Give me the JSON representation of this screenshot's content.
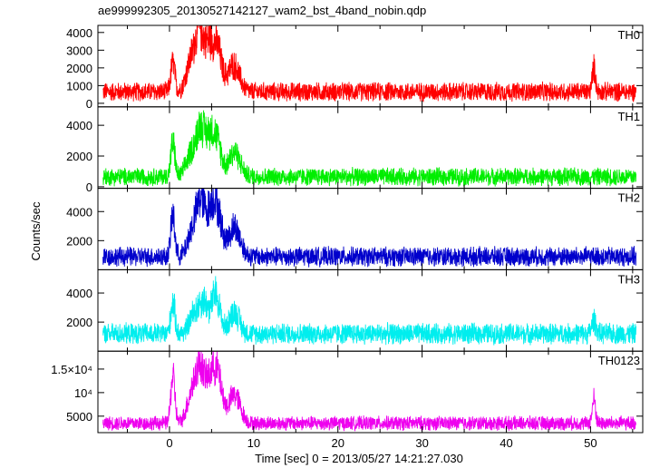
{
  "chart_data": {
    "type": "line",
    "title": "ae999992305_20130527142127_wam2_bst_4band_nobin.qdp",
    "xlabel": "Time [sec] 0 = 2013/05/27 14:21:27.030",
    "ylabel": "Counts/sec",
    "xlim": [
      -8.5,
      56.2
    ],
    "x_ticks": [
      0,
      10,
      20,
      30,
      40,
      50
    ],
    "x_tick_labels": [
      "0",
      "10",
      "20",
      "30",
      "40",
      "50"
    ],
    "grid": false,
    "panels": [
      {
        "name": "TH0",
        "color": "#ff0000",
        "ylim": [
          -200,
          4400
        ],
        "y_ticks": [
          0,
          1000,
          2000,
          3000,
          4000
        ],
        "y_tick_labels": [
          "0",
          "1000",
          "2000",
          "3000",
          "4000"
        ],
        "baseline": 650,
        "noise": 600,
        "bursts": [
          {
            "t": 0.4,
            "h": 1600,
            "w": 0.25
          },
          {
            "t": 2.6,
            "h": 1700,
            "w": 0.6
          },
          {
            "t": 3.6,
            "h": 3000,
            "w": 0.5
          },
          {
            "t": 4.7,
            "h": 2400,
            "w": 0.5
          },
          {
            "t": 5.7,
            "h": 2300,
            "w": 0.5
          },
          {
            "t": 7.6,
            "h": 1500,
            "w": 0.7
          },
          {
            "t": 50.4,
            "h": 1300,
            "w": 0.2
          }
        ]
      },
      {
        "name": "TH1",
        "color": "#00ee00",
        "ylim": [
          -100,
          5200
        ],
        "y_ticks": [
          0,
          2000,
          4000
        ],
        "y_tick_labels": [
          "0",
          "2000",
          "4000"
        ],
        "baseline": 650,
        "noise": 650,
        "bursts": [
          {
            "t": 0.4,
            "h": 2200,
            "w": 0.25
          },
          {
            "t": 2.6,
            "h": 1500,
            "w": 0.6
          },
          {
            "t": 3.7,
            "h": 2900,
            "w": 0.5
          },
          {
            "t": 4.8,
            "h": 2400,
            "w": 0.5
          },
          {
            "t": 5.7,
            "h": 2000,
            "w": 0.5
          },
          {
            "t": 7.7,
            "h": 1600,
            "w": 0.7
          }
        ]
      },
      {
        "name": "TH2",
        "color": "#0000cc",
        "ylim": [
          0,
          5600
        ],
        "y_ticks": [
          2000,
          4000
        ],
        "y_tick_labels": [
          "2000",
          "4000"
        ],
        "baseline": 900,
        "noise": 750,
        "bursts": [
          {
            "t": 0.4,
            "h": 2800,
            "w": 0.25
          },
          {
            "t": 2.8,
            "h": 1900,
            "w": 0.6
          },
          {
            "t": 3.8,
            "h": 3400,
            "w": 0.5
          },
          {
            "t": 5.0,
            "h": 3000,
            "w": 0.5
          },
          {
            "t": 5.8,
            "h": 2400,
            "w": 0.5
          },
          {
            "t": 7.7,
            "h": 2000,
            "w": 0.7
          }
        ]
      },
      {
        "name": "TH3",
        "color": "#00eeee",
        "ylim": [
          0,
          5600
        ],
        "y_ticks": [
          2000,
          4000
        ],
        "y_tick_labels": [
          "2000",
          "4000"
        ],
        "baseline": 1200,
        "noise": 800,
        "bursts": [
          {
            "t": 0.4,
            "h": 2200,
            "w": 0.25
          },
          {
            "t": 3.0,
            "h": 1400,
            "w": 0.6
          },
          {
            "t": 4.1,
            "h": 2000,
            "w": 0.5
          },
          {
            "t": 5.5,
            "h": 2700,
            "w": 0.5
          },
          {
            "t": 7.7,
            "h": 1500,
            "w": 0.6
          },
          {
            "t": 50.4,
            "h": 900,
            "w": 0.25
          }
        ]
      },
      {
        "name": "TH0123",
        "color": "#ee00ee",
        "ylim": [
          1500,
          18800
        ],
        "y_ticks": [
          5000,
          10000,
          15000
        ],
        "y_tick_labels": [
          "5000",
          "10⁴",
          "1.5×10⁴"
        ],
        "baseline": 3500,
        "noise": 1700,
        "bursts": [
          {
            "t": 0.4,
            "h": 10000,
            "w": 0.25
          },
          {
            "t": 2.7,
            "h": 6500,
            "w": 0.6
          },
          {
            "t": 3.7,
            "h": 10500,
            "w": 0.5
          },
          {
            "t": 4.9,
            "h": 9000,
            "w": 0.5
          },
          {
            "t": 5.8,
            "h": 9000,
            "w": 0.5
          },
          {
            "t": 7.7,
            "h": 6000,
            "w": 0.7
          },
          {
            "t": 50.4,
            "h": 5000,
            "w": 0.2
          }
        ]
      }
    ]
  }
}
